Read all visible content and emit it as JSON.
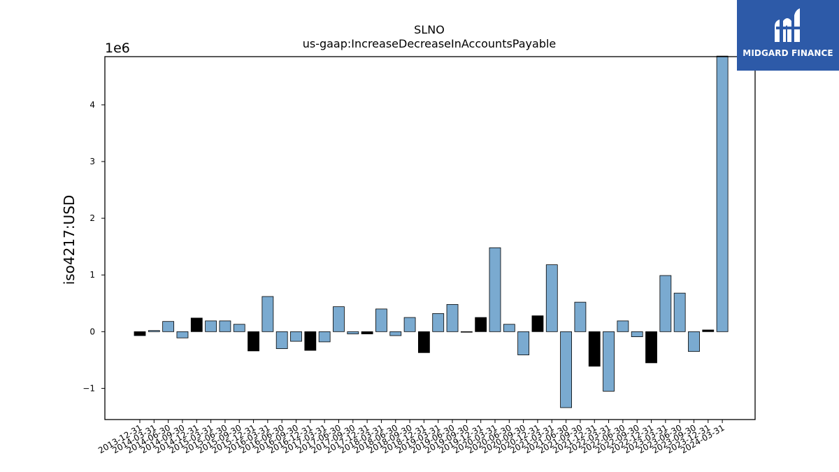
{
  "chart_data": {
    "type": "bar",
    "title": "SLNO",
    "subtitle": "us-gaap:IncreaseDecreaseInAccountsPayable",
    "ylabel": "iso4217:USD",
    "y_offset_label": "1e6",
    "ylim": [
      -1.55,
      4.85
    ],
    "yticks": [
      -1,
      0,
      1,
      2,
      3,
      4
    ],
    "ytick_labels": [
      "−1",
      "0",
      "1",
      "2",
      "3",
      "4"
    ],
    "categories": [
      "2013-12-31",
      "2014-03-31",
      "2014-06-30",
      "2014-09-30",
      "2014-12-31",
      "2015-03-31",
      "2015-06-30",
      "2015-09-30",
      "2015-12-31",
      "2016-03-31",
      "2016-06-30",
      "2016-09-30",
      "2016-12-31",
      "2017-03-31",
      "2017-06-30",
      "2017-09-30",
      "2017-12-31",
      "2018-03-31",
      "2018-06-30",
      "2018-09-30",
      "2018-12-31",
      "2019-03-31",
      "2019-06-30",
      "2019-09-30",
      "2019-12-31",
      "2020-03-31",
      "2020-06-30",
      "2020-09-30",
      "2020-12-31",
      "2021-03-31",
      "2021-06-30",
      "2021-09-30",
      "2021-12-31",
      "2022-03-31",
      "2022-06-30",
      "2022-09-30",
      "2022-12-31",
      "2023-03-31",
      "2023-06-30",
      "2023-09-30",
      "2023-12-31",
      "2024-03-31"
    ],
    "values": [
      -0.07,
      0.02,
      0.18,
      -0.11,
      0.24,
      0.19,
      0.19,
      0.13,
      -0.34,
      0.62,
      -0.3,
      -0.17,
      -0.33,
      -0.18,
      0.44,
      -0.04,
      -0.04,
      0.4,
      -0.07,
      0.25,
      -0.37,
      0.32,
      0.48,
      -0.01,
      0.25,
      1.48,
      0.13,
      -0.41,
      0.28,
      1.18,
      -1.34,
      0.52,
      -0.61,
      -1.05,
      0.19,
      -0.09,
      -0.55,
      0.99,
      0.68,
      -0.35,
      0.03,
      4.86
    ],
    "bar_kinds": [
      "q4",
      "q",
      "q",
      "q",
      "q4",
      "q",
      "q",
      "q",
      "q4",
      "q",
      "q",
      "q",
      "q4",
      "q",
      "q",
      "q",
      "q4",
      "q",
      "q",
      "q",
      "q4",
      "q",
      "q",
      "q",
      "q4",
      "q",
      "q",
      "q",
      "q4",
      "q",
      "q",
      "q",
      "q4",
      "q",
      "q",
      "q",
      "q4",
      "q",
      "q",
      "q",
      "q4",
      "q"
    ],
    "colors": {
      "quarter_bar": "#7aaad0",
      "annual_bar": "#000000",
      "edge": "#000000"
    },
    "grid": false,
    "legend": "none"
  },
  "logo": {
    "text": "MIDGARD FINANCE",
    "icon": "midgard-logo-icon",
    "background": "#2d5aa8"
  }
}
